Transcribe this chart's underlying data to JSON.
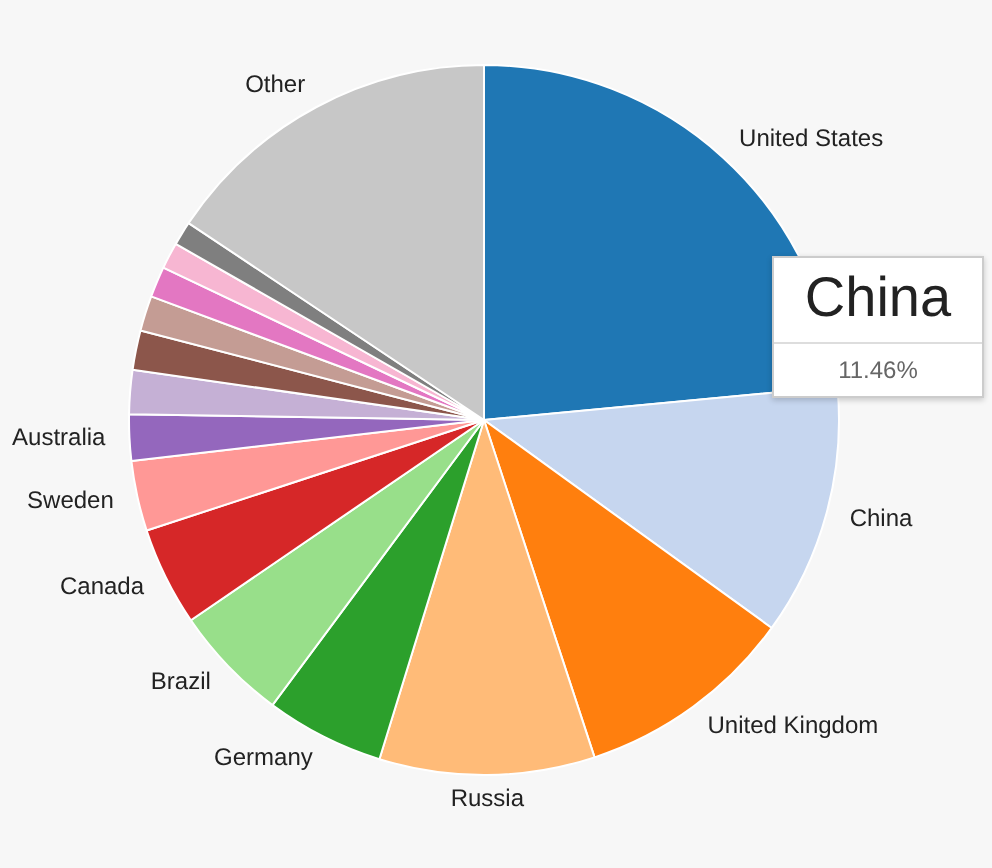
{
  "chart_data": {
    "type": "pie",
    "categories": [
      "United States",
      "China",
      "United Kingdom",
      "Russia",
      "Germany",
      "Brazil",
      "Canada",
      "Sweden",
      "Australia",
      null,
      null,
      null,
      null,
      null,
      null,
      "Other"
    ],
    "values": [
      23.5,
      11.46,
      10.0,
      9.8,
      5.4,
      5.3,
      4.5,
      3.2,
      2.1,
      2.0,
      1.8,
      1.6,
      1.4,
      1.2,
      1.1,
      15.64
    ],
    "colors": [
      "#1f77b4",
      "#c6d6ef",
      "#ff7f0e",
      "#ffbb78",
      "#2ca02c",
      "#98df8a",
      "#d62728",
      "#ff9896",
      "#9467bd",
      "#c5b0d5",
      "#8c564b",
      "#c49c94",
      "#e377c2",
      "#f7b6d2",
      "#7f7f7f",
      "#c7c7c7"
    ],
    "legend": false,
    "annotations": [
      "China",
      "11.46%"
    ]
  }
}
